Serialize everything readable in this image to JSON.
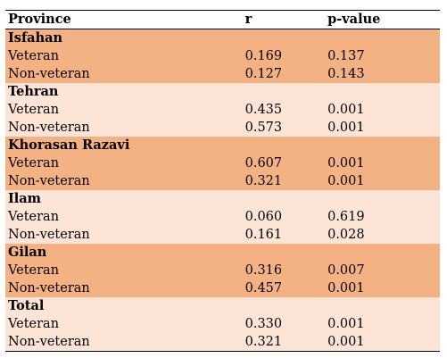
{
  "header": {
    "col_province": "Province",
    "col_r": "r",
    "col_p": "p-value"
  },
  "colors": {
    "dark_band": "#f4b183",
    "light_band": "#fce4d6"
  },
  "groups": [
    {
      "name": "Isfahan",
      "rows": [
        {
          "label": "Veteran",
          "r": "0.169",
          "p": "0.137"
        },
        {
          "label": "Non-veteran",
          "r": "0.127",
          "p": "0.143"
        }
      ]
    },
    {
      "name": "Tehran",
      "rows": [
        {
          "label": "Veteran",
          "r": "0.435",
          "p": "0.001"
        },
        {
          "label": "Non-veteran",
          "r": "0.573",
          "p": "0.001"
        }
      ]
    },
    {
      "name": "Khorasan Razavi",
      "rows": [
        {
          "label": "Veteran",
          "r": "0.607",
          "p": "0.001"
        },
        {
          "label": "Non-veteran",
          "r": "0.321",
          "p": "0.001"
        }
      ]
    },
    {
      "name": "Ilam",
      "rows": [
        {
          "label": "Veteran",
          "r": "0.060",
          "p": "0.619"
        },
        {
          "label": "Non-veteran",
          "r": "0.161",
          "p": "0.028"
        }
      ]
    },
    {
      "name": "Gilan",
      "rows": [
        {
          "label": "Veteran",
          "r": "0.316",
          "p": "0.007"
        },
        {
          "label": "Non-veteran",
          "r": "0.457",
          "p": "0.001"
        }
      ]
    },
    {
      "name": "Total",
      "rows": [
        {
          "label": "Veteran",
          "r": "0.330",
          "p": "0.001"
        },
        {
          "label": "Non-veteran",
          "r": "0.321",
          "p": "0.001"
        }
      ]
    }
  ]
}
